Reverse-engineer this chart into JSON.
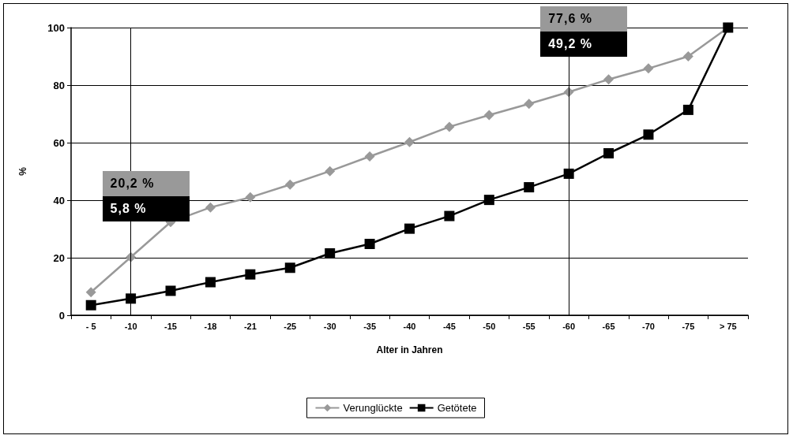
{
  "chart_data": {
    "type": "line",
    "xlabel": "Alter in Jahren",
    "ylabel": "%",
    "categories": [
      "- 5",
      "-10",
      "-15",
      "-18",
      "-21",
      "-25",
      "-30",
      "-35",
      "-40",
      "-45",
      "-50",
      "-55",
      "-60",
      "-65",
      "-70",
      "-75",
      "> 75"
    ],
    "series": [
      {
        "name": "Verunglückte",
        "color": "#999999",
        "marker": "diamond",
        "values": [
          8.0,
          20.2,
          32.4,
          37.5,
          41.0,
          45.4,
          50.1,
          55.2,
          60.2,
          65.5,
          69.6,
          73.5,
          77.6,
          82.0,
          85.8,
          90.0,
          100
        ]
      },
      {
        "name": "Getötete",
        "color": "#000000",
        "marker": "square",
        "values": [
          3.5,
          5.8,
          8.5,
          11.5,
          14.2,
          16.5,
          21.5,
          24.8,
          30.1,
          34.5,
          40.1,
          44.5,
          49.2,
          56.3,
          62.8,
          71.4,
          100
        ]
      }
    ],
    "ylim": [
      0,
      100
    ],
    "yticks": [
      0,
      20,
      40,
      60,
      80,
      100
    ],
    "grid": "y",
    "legend": "bottom",
    "ref_lines": [
      {
        "axis": "x",
        "value": "-10",
        "color": "#000000"
      },
      {
        "axis": "x",
        "value": "-60",
        "color": "#000000"
      }
    ],
    "annotations": [
      "20,2 %",
      "5,8 %",
      "77,6 %",
      "49,2 %"
    ]
  }
}
